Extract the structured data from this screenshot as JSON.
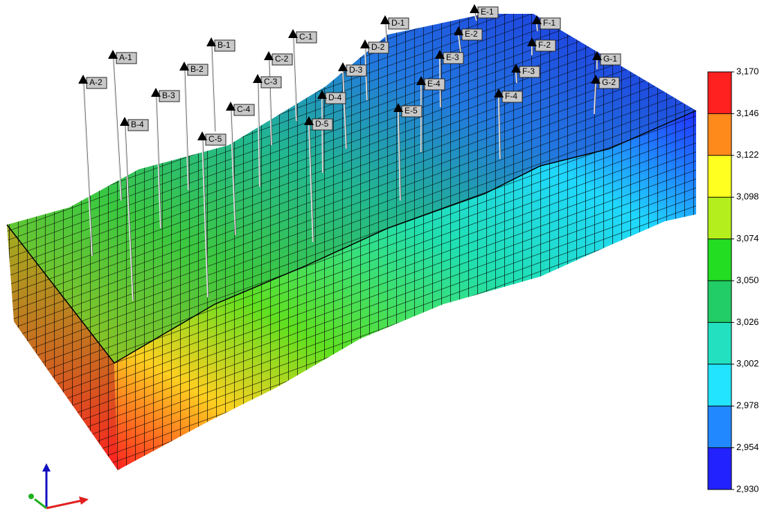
{
  "wells": [
    {
      "label": "A-1"
    },
    {
      "label": "A-2"
    },
    {
      "label": "B-1"
    },
    {
      "label": "B-2"
    },
    {
      "label": "B-3"
    },
    {
      "label": "B-4"
    },
    {
      "label": "C-1"
    },
    {
      "label": "C-2"
    },
    {
      "label": "C-3"
    },
    {
      "label": "C-4"
    },
    {
      "label": "C-5"
    },
    {
      "label": "D-1"
    },
    {
      "label": "D-2"
    },
    {
      "label": "D-3"
    },
    {
      "label": "D-4"
    },
    {
      "label": "D-5"
    },
    {
      "label": "E-1"
    },
    {
      "label": "E-2"
    },
    {
      "label": "E-3"
    },
    {
      "label": "E-4"
    },
    {
      "label": "E-5"
    },
    {
      "label": "F-1"
    },
    {
      "label": "F-2"
    },
    {
      "label": "F-3"
    },
    {
      "label": "F-4"
    },
    {
      "label": "G-1"
    },
    {
      "label": "G-2"
    }
  ],
  "colorbar": {
    "ticks": [
      {
        "value": 3170,
        "label": "3,170"
      },
      {
        "value": 3146,
        "label": "3,146"
      },
      {
        "value": 3122,
        "label": "3,122"
      },
      {
        "value": 3098,
        "label": "3,098"
      },
      {
        "value": 3074,
        "label": "3,074"
      },
      {
        "value": 3050,
        "label": "3,050"
      },
      {
        "value": 3026,
        "label": "3,026"
      },
      {
        "value": 3002,
        "label": "3,002"
      },
      {
        "value": 2978,
        "label": "2,978"
      },
      {
        "value": 2954,
        "label": "2,954"
      },
      {
        "value": 2930,
        "label": "2,930"
      }
    ],
    "colors": [
      "#ff2020",
      "#ff8a1c",
      "#ffff20",
      "#b4ee1c",
      "#22dd22",
      "#22cc66",
      "#22e0c0",
      "#22e4ff",
      "#2288ff",
      "#2222ff"
    ]
  }
}
